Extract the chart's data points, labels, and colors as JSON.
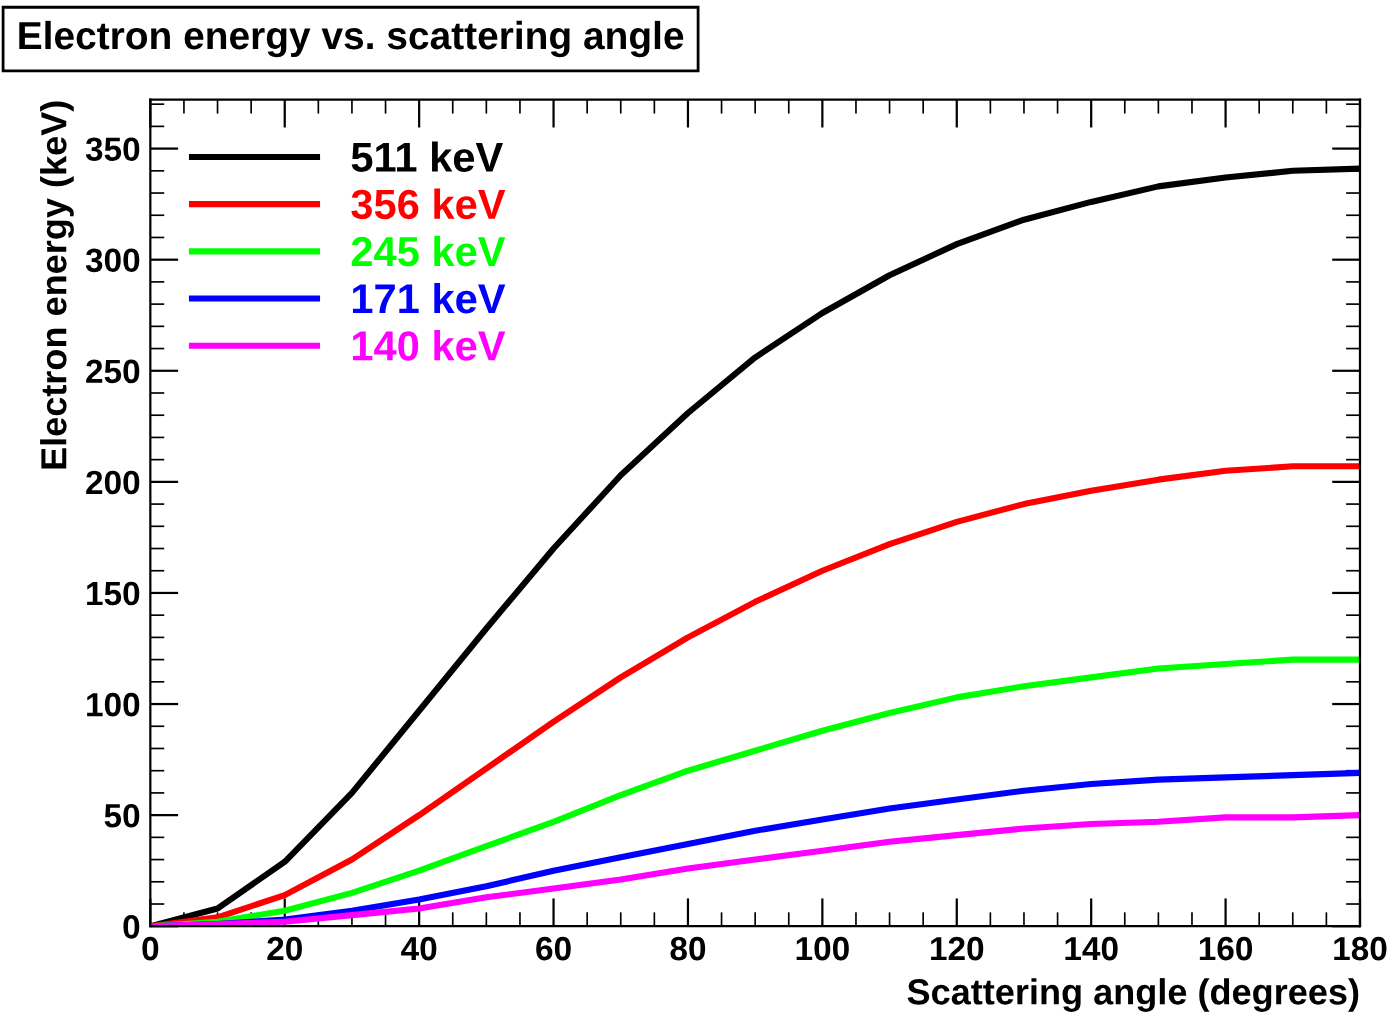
{
  "chart_data": {
    "type": "line",
    "title": "Electron energy vs. scattering angle",
    "xlabel": "Scattering angle (degrees)",
    "ylabel": "Electron energy (keV)",
    "x": [
      0,
      10,
      20,
      30,
      40,
      50,
      60,
      70,
      80,
      90,
      100,
      110,
      120,
      130,
      140,
      150,
      160,
      170,
      180
    ],
    "series": [
      {
        "name": "511 keV",
        "color": "#000000",
        "values": [
          0,
          8,
          29,
          60,
          97,
          134,
          170,
          203,
          231,
          256,
          276,
          293,
          307,
          318,
          326,
          333,
          337,
          340,
          341
        ]
      },
      {
        "name": "356 keV",
        "color": "#ff0000",
        "values": [
          0,
          4,
          14,
          30,
          50,
          71,
          92,
          112,
          130,
          146,
          160,
          172,
          182,
          190,
          196,
          201,
          205,
          207,
          207
        ]
      },
      {
        "name": "245 keV",
        "color": "#00ff00",
        "values": [
          0,
          2,
          7,
          15,
          25,
          36,
          47,
          59,
          70,
          79,
          88,
          96,
          103,
          108,
          112,
          116,
          118,
          120,
          120
        ]
      },
      {
        "name": "171 keV",
        "color": "#0000ff",
        "values": [
          0,
          1,
          3,
          7,
          12,
          18,
          25,
          31,
          37,
          43,
          48,
          53,
          57,
          61,
          64,
          66,
          67,
          68,
          69
        ]
      },
      {
        "name": "140 keV",
        "color": "#ff00ff",
        "values": [
          0,
          1,
          2,
          5,
          8,
          13,
          17,
          21,
          26,
          30,
          34,
          38,
          41,
          44,
          46,
          47,
          49,
          49,
          50
        ]
      }
    ],
    "xlim": [
      0,
      180
    ],
    "xticks": [
      0,
      20,
      40,
      60,
      80,
      100,
      120,
      140,
      160,
      180
    ],
    "ylim": [
      0,
      372
    ],
    "yticks": [
      0,
      50,
      100,
      150,
      200,
      250,
      300,
      350
    ],
    "grid": false,
    "legend": "top left",
    "line_style": "solid",
    "marker": "none"
  }
}
